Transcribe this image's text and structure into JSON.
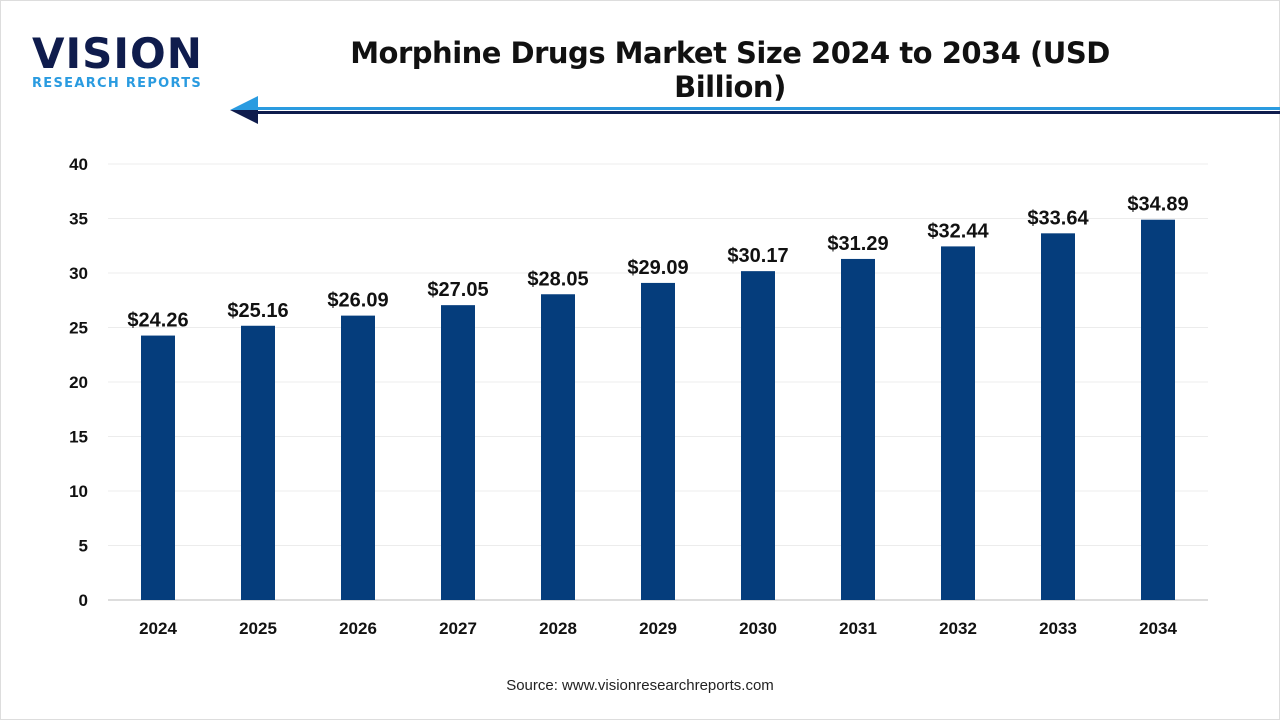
{
  "logo": {
    "main": "VISION",
    "sub": "RESEARCH REPORTS"
  },
  "title": "Morphine Drugs Market Size 2024 to 2034 (USD Billion)",
  "source": "Source: www.visionresearchreports.com",
  "colors": {
    "bar": "#053d7c",
    "accent": "#2a9be0",
    "dark": "#0f1c4d"
  },
  "chart_data": {
    "type": "bar",
    "title": "Morphine Drugs Market Size 2024 to 2034 (USD Billion)",
    "categories": [
      "2024",
      "2025",
      "2026",
      "2027",
      "2028",
      "2029",
      "2030",
      "2031",
      "2032",
      "2033",
      "2034"
    ],
    "values": [
      24.26,
      25.16,
      26.09,
      27.05,
      28.05,
      29.09,
      30.17,
      31.29,
      32.44,
      33.64,
      34.89
    ],
    "labels": [
      "$24.26",
      "$25.16",
      "$26.09",
      "$27.05",
      "$28.05",
      "$29.09",
      "$30.17",
      "$31.29",
      "$32.44",
      "$33.64",
      "$34.89"
    ],
    "yticks": [
      "0",
      "5",
      "10",
      "15",
      "20",
      "25",
      "30",
      "35",
      "40"
    ],
    "ylim": [
      0,
      40
    ],
    "grid": true,
    "xlabel": "",
    "ylabel": ""
  }
}
